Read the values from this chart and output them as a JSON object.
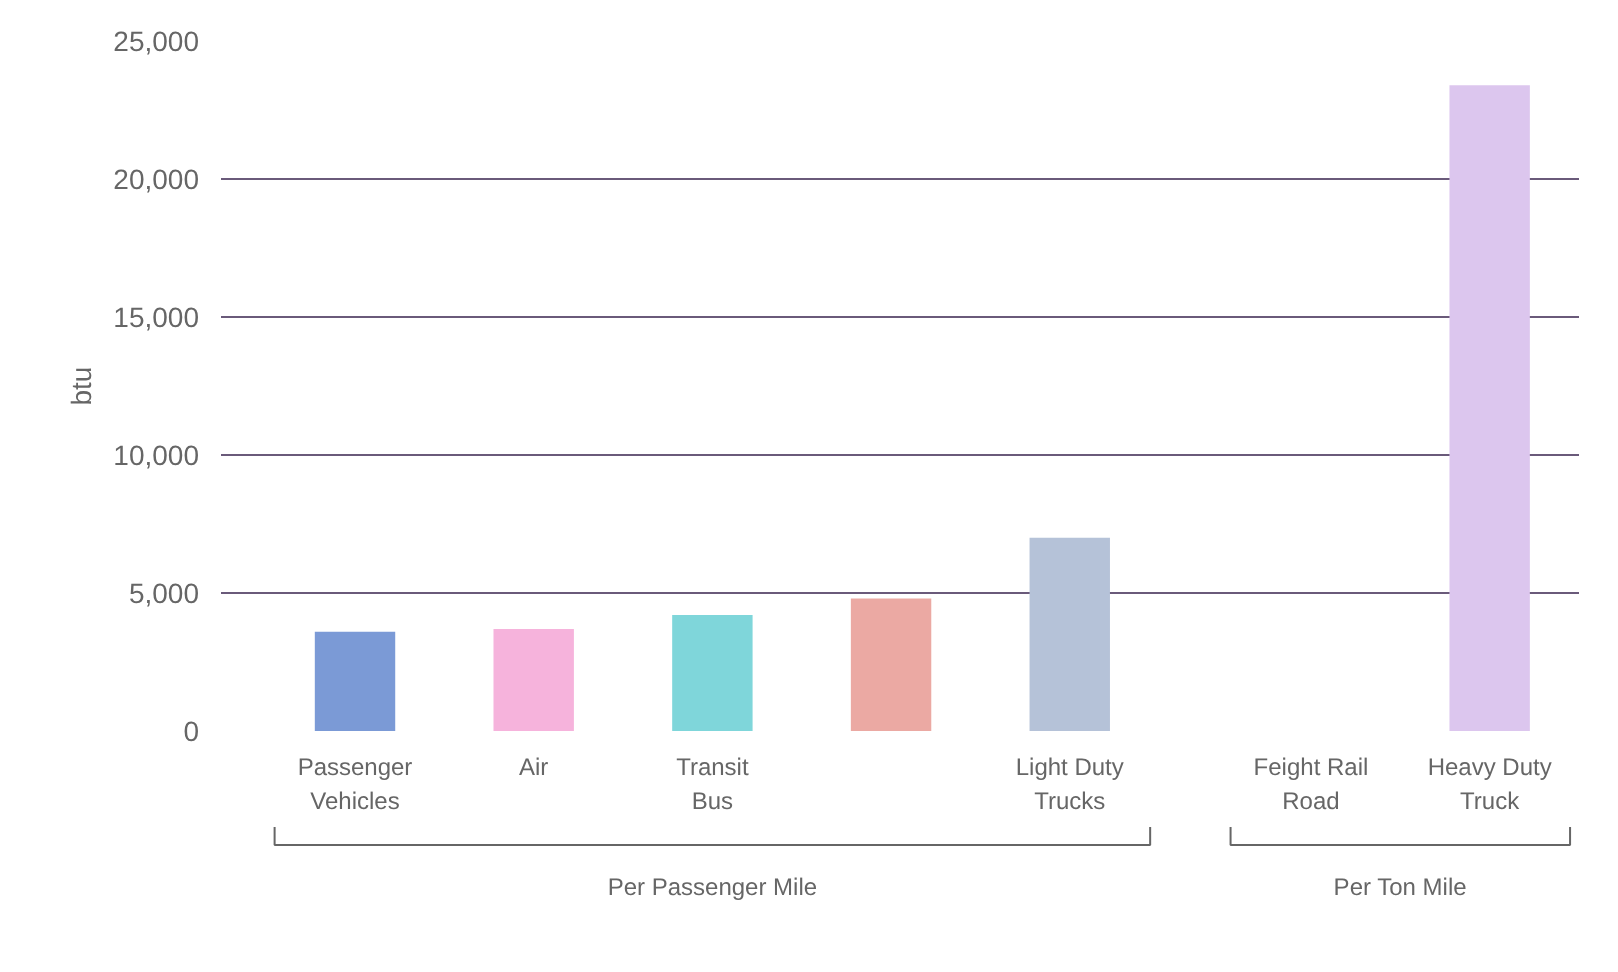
{
  "chart_data": {
    "type": "bar",
    "ylabel": "btu",
    "categories": [
      "Passenger Vehicles",
      "Air",
      "Transit Bus",
      null,
      "Light Duty Trucks",
      "Feight Rail Road",
      "Heavy Duty Truck"
    ],
    "values": [
      3600,
      3700,
      4200,
      4800,
      7000,
      null,
      23400
    ],
    "colors": [
      "#7b9ad6",
      "#f6b3dc",
      "#7fd6da",
      "#eba9a3",
      "#b5c2d8",
      "#cccccc",
      "#dcc6ee"
    ],
    "ylim": [
      0,
      25000
    ],
    "yticks": [
      0,
      {
        "value": 5000,
        "label": "5,000"
      },
      {
        "value": 10000,
        "label": "10,000"
      },
      {
        "value": 15000,
        "label": "15,000"
      },
      {
        "value": 20000,
        "label": "20,000"
      },
      {
        "value": 25000,
        "label": "25,000"
      }
    ],
    "grid": "y",
    "annotations": [
      "Per Passenger Mile",
      "Per Ton Mile"
    ]
  }
}
